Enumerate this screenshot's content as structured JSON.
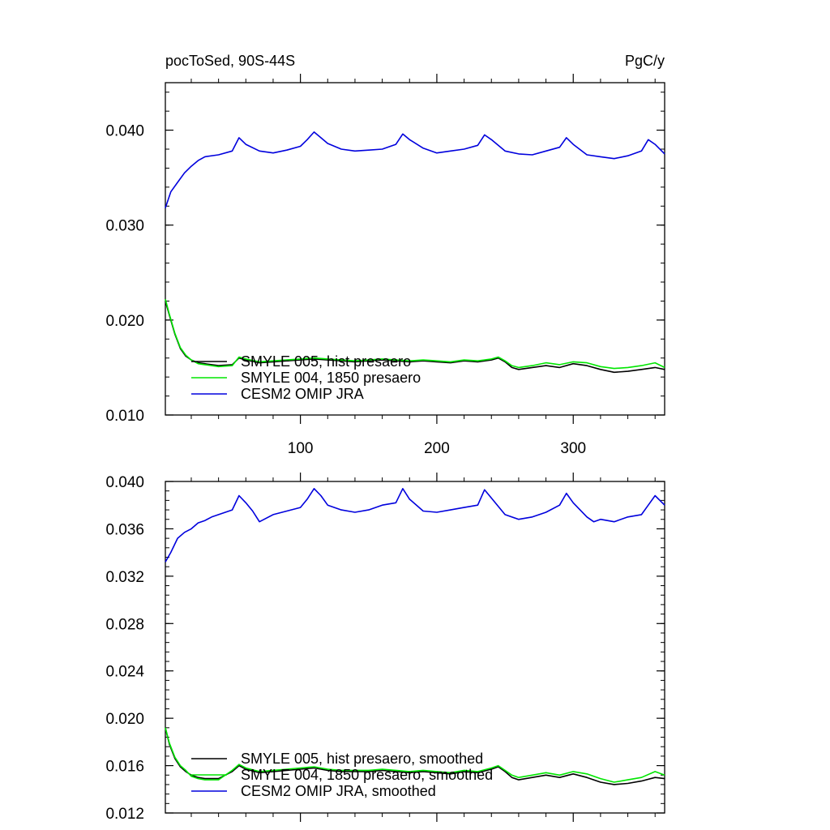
{
  "header": {
    "left": "pocToSed, 90S-44S",
    "right": "PgC/y"
  },
  "colors": {
    "s005": "#000000",
    "s004": "#00e600",
    "omip": "#0000dd"
  },
  "chart_data": [
    {
      "type": "line",
      "xlim": [
        1,
        367
      ],
      "ylim": [
        0.01,
        0.045
      ],
      "yticks": [
        0.01,
        0.02,
        0.03,
        0.04
      ],
      "ytick_labels": [
        "0.010",
        "0.020",
        "0.030",
        "0.040"
      ],
      "xticks": [
        100,
        200,
        300
      ],
      "xtick_labels": [
        "100",
        "200",
        "300"
      ],
      "legend_position": "lower-left",
      "series": [
        {
          "name": "SMYLE 005, hist presaero",
          "color": "#000000",
          "x": [
            1,
            4,
            8,
            12,
            16,
            20,
            25,
            30,
            40,
            50,
            55,
            60,
            70,
            80,
            90,
            100,
            110,
            120,
            130,
            140,
            150,
            160,
            170,
            180,
            190,
            200,
            210,
            220,
            230,
            240,
            245,
            250,
            255,
            260,
            270,
            280,
            290,
            300,
            310,
            320,
            330,
            340,
            350,
            360,
            367
          ],
          "y": [
            0.022,
            0.0205,
            0.0185,
            0.017,
            0.0162,
            0.0158,
            0.0155,
            0.0154,
            0.0152,
            0.0153,
            0.016,
            0.0158,
            0.0155,
            0.0156,
            0.0157,
            0.0158,
            0.0159,
            0.0158,
            0.0157,
            0.0156,
            0.0157,
            0.0158,
            0.0157,
            0.0156,
            0.0157,
            0.0156,
            0.0155,
            0.0157,
            0.0156,
            0.0158,
            0.016,
            0.0156,
            0.015,
            0.0148,
            0.015,
            0.0152,
            0.015,
            0.0154,
            0.0152,
            0.0148,
            0.0145,
            0.0146,
            0.0148,
            0.015,
            0.0148
          ]
        },
        {
          "name": "SMYLE 004, 1850 presaero",
          "color": "#00e600",
          "x": [
            1,
            4,
            8,
            12,
            16,
            20,
            25,
            30,
            40,
            50,
            55,
            60,
            70,
            80,
            90,
            100,
            110,
            120,
            130,
            140,
            150,
            160,
            170,
            180,
            190,
            200,
            210,
            220,
            230,
            240,
            245,
            250,
            255,
            260,
            270,
            280,
            290,
            300,
            310,
            320,
            330,
            340,
            350,
            360,
            367
          ],
          "y": [
            0.0222,
            0.0206,
            0.0186,
            0.0171,
            0.0163,
            0.0158,
            0.0154,
            0.0153,
            0.0151,
            0.0152,
            0.0161,
            0.0159,
            0.0156,
            0.0157,
            0.0158,
            0.0159,
            0.016,
            0.0159,
            0.0158,
            0.0157,
            0.0158,
            0.0159,
            0.0158,
            0.0157,
            0.0158,
            0.0157,
            0.0156,
            0.0158,
            0.0157,
            0.0159,
            0.0161,
            0.0157,
            0.0152,
            0.015,
            0.0152,
            0.0155,
            0.0153,
            0.0156,
            0.0155,
            0.0151,
            0.0149,
            0.015,
            0.0152,
            0.0155,
            0.015
          ]
        },
        {
          "name": "CESM2 OMIP JRA",
          "color": "#0000dd",
          "x": [
            1,
            5,
            10,
            15,
            20,
            25,
            30,
            40,
            50,
            55,
            60,
            70,
            80,
            90,
            100,
            105,
            110,
            115,
            120,
            130,
            140,
            150,
            160,
            170,
            175,
            180,
            190,
            200,
            210,
            220,
            230,
            235,
            240,
            250,
            260,
            270,
            280,
            290,
            295,
            300,
            310,
            320,
            330,
            340,
            350,
            355,
            360,
            367
          ],
          "y": [
            0.0318,
            0.0335,
            0.0345,
            0.0355,
            0.0362,
            0.0368,
            0.0372,
            0.0374,
            0.0378,
            0.0392,
            0.0385,
            0.0378,
            0.0376,
            0.0379,
            0.0383,
            0.039,
            0.0398,
            0.0392,
            0.0386,
            0.038,
            0.0378,
            0.0379,
            0.038,
            0.0385,
            0.0396,
            0.039,
            0.0381,
            0.0376,
            0.0378,
            0.038,
            0.0384,
            0.0395,
            0.039,
            0.0378,
            0.0375,
            0.0374,
            0.0378,
            0.0382,
            0.0392,
            0.0385,
            0.0374,
            0.0372,
            0.037,
            0.0373,
            0.0378,
            0.039,
            0.0385,
            0.0375
          ]
        }
      ]
    },
    {
      "type": "line",
      "xlim": [
        1,
        367
      ],
      "ylim": [
        0.012,
        0.04
      ],
      "yticks": [
        0.012,
        0.016,
        0.02,
        0.024,
        0.028,
        0.032,
        0.036,
        0.04
      ],
      "ytick_labels": [
        "0.012",
        "0.016",
        "0.020",
        "0.024",
        "0.028",
        "0.032",
        "0.036",
        "0.040"
      ],
      "xticks": [
        100,
        200,
        300
      ],
      "xtick_labels": [],
      "legend_position": "lower-left",
      "series": [
        {
          "name": "SMYLE 005, hist presaero, smoothed",
          "color": "#000000",
          "x": [
            1,
            4,
            8,
            12,
            16,
            20,
            25,
            30,
            40,
            50,
            55,
            60,
            70,
            80,
            90,
            100,
            110,
            120,
            130,
            140,
            150,
            160,
            170,
            180,
            190,
            200,
            210,
            220,
            230,
            240,
            245,
            250,
            255,
            260,
            270,
            280,
            290,
            300,
            310,
            320,
            330,
            340,
            350,
            360,
            367
          ],
          "y": [
            0.0192,
            0.0178,
            0.0166,
            0.0159,
            0.0155,
            0.0152,
            0.015,
            0.0149,
            0.0149,
            0.0155,
            0.016,
            0.0157,
            0.0154,
            0.0155,
            0.0156,
            0.0157,
            0.0158,
            0.0156,
            0.0155,
            0.0155,
            0.0155,
            0.0156,
            0.0155,
            0.0154,
            0.0155,
            0.0154,
            0.0153,
            0.0155,
            0.0154,
            0.0157,
            0.0159,
            0.0155,
            0.015,
            0.0148,
            0.015,
            0.0152,
            0.015,
            0.0153,
            0.015,
            0.0146,
            0.0144,
            0.0145,
            0.0147,
            0.015,
            0.0149
          ]
        },
        {
          "name": "SMYLE 004, 1850 presaero, smoothed",
          "color": "#00e600",
          "x": [
            1,
            4,
            8,
            12,
            16,
            20,
            25,
            30,
            40,
            50,
            55,
            60,
            70,
            80,
            90,
            100,
            110,
            120,
            130,
            140,
            150,
            160,
            170,
            180,
            190,
            200,
            210,
            220,
            230,
            240,
            245,
            250,
            255,
            260,
            270,
            280,
            290,
            300,
            310,
            320,
            330,
            340,
            350,
            360,
            367
          ],
          "y": [
            0.0192,
            0.0179,
            0.0167,
            0.016,
            0.0156,
            0.0151,
            0.0149,
            0.0148,
            0.0148,
            0.0156,
            0.0161,
            0.0158,
            0.0155,
            0.0156,
            0.0157,
            0.0158,
            0.0159,
            0.0157,
            0.0156,
            0.0156,
            0.0156,
            0.0157,
            0.0156,
            0.0155,
            0.0156,
            0.0155,
            0.0154,
            0.0156,
            0.0155,
            0.0158,
            0.016,
            0.0156,
            0.0152,
            0.015,
            0.0152,
            0.0154,
            0.0152,
            0.0155,
            0.0153,
            0.0149,
            0.0146,
            0.0148,
            0.015,
            0.0155,
            0.0152
          ]
        },
        {
          "name": "CESM2 OMIP JRA, smoothed",
          "color": "#0000dd",
          "x": [
            1,
            5,
            10,
            15,
            20,
            25,
            30,
            35,
            40,
            50,
            55,
            60,
            65,
            70,
            80,
            90,
            100,
            105,
            110,
            115,
            120,
            130,
            140,
            150,
            160,
            170,
            175,
            180,
            190,
            200,
            210,
            220,
            230,
            235,
            240,
            250,
            260,
            270,
            280,
            290,
            295,
            300,
            310,
            315,
            320,
            330,
            340,
            350,
            355,
            360,
            367
          ],
          "y": [
            0.0332,
            0.034,
            0.0352,
            0.0357,
            0.036,
            0.0365,
            0.0367,
            0.037,
            0.0372,
            0.0376,
            0.0388,
            0.0382,
            0.0375,
            0.0366,
            0.0372,
            0.0375,
            0.0378,
            0.0385,
            0.0394,
            0.0388,
            0.038,
            0.0376,
            0.0374,
            0.0376,
            0.038,
            0.0382,
            0.0394,
            0.0385,
            0.0375,
            0.0374,
            0.0376,
            0.0378,
            0.038,
            0.0393,
            0.0386,
            0.0372,
            0.0368,
            0.037,
            0.0374,
            0.038,
            0.039,
            0.0382,
            0.037,
            0.0366,
            0.0368,
            0.0366,
            0.037,
            0.0372,
            0.038,
            0.0388,
            0.038
          ]
        }
      ]
    }
  ]
}
